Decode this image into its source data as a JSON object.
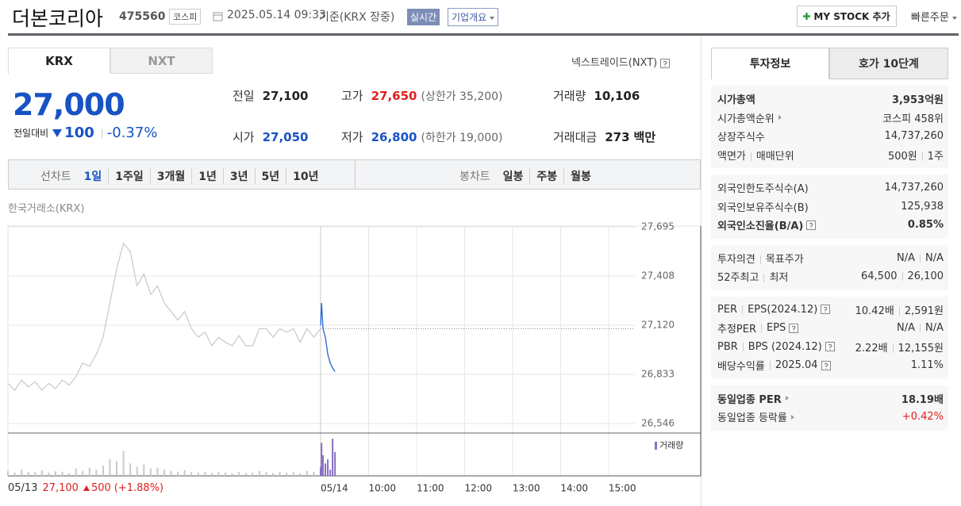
{
  "header": {
    "name": "더본코리아",
    "code": "475560",
    "market": "코스피",
    "datetime": "2025.05.14 09:33",
    "basis": "기준(KRX 장중)",
    "realtime": "실시간",
    "company_overview": "기업개요",
    "my_stock": "MY STOCK 추가",
    "quick_order": "빠른주문"
  },
  "exchange_tabs": [
    "KRX",
    "NXT"
  ],
  "nxt_link": "넥스트레이드(NXT)",
  "price": {
    "current": "27,000",
    "change_label": "전일대비",
    "change": "100",
    "change_rate": "-0.37%"
  },
  "quote": [
    [
      {
        "label": "전일",
        "value": "27,100"
      },
      {
        "label": "고가",
        "value": "27,650",
        "note": "(상한가 35,200)"
      },
      {
        "label": "거래량",
        "value": "10,106"
      }
    ],
    [
      {
        "label": "시가",
        "value": "27,050"
      },
      {
        "label": "저가",
        "value": "26,800",
        "note": "(하한가 19,000)"
      },
      {
        "label": "거래대금",
        "value": "273",
        "note": "백만"
      }
    ]
  ],
  "periods": {
    "line_label": "선차트",
    "line": [
      "1일",
      "1주일",
      "3개월",
      "1년",
      "3년",
      "5년",
      "10년"
    ],
    "candle_label": "봉차트",
    "candle": [
      "일봉",
      "주봉",
      "월봉"
    ]
  },
  "chart": {
    "source": "한국거래소(KRX)",
    "ylim": [
      26546,
      27695
    ],
    "yticks": [
      {
        "value": 27695,
        "label": "27,695"
      },
      {
        "value": 27408,
        "label": "27,408"
      },
      {
        "value": 27120,
        "label": "27,120"
      },
      {
        "value": 26833,
        "label": "26,833"
      },
      {
        "value": 26546,
        "label": "26,546"
      }
    ],
    "xlim": [
      9,
      16.92
    ],
    "day_start": {
      "value": 9,
      "label": "05/14"
    },
    "xticks": [
      {
        "value": 10,
        "label": "10:00"
      },
      {
        "value": 11,
        "label": "11:00"
      },
      {
        "value": 12,
        "label": "12:00"
      },
      {
        "value": 13,
        "label": "13:00"
      },
      {
        "value": 14,
        "label": "14:00"
      },
      {
        "value": 15,
        "label": "15:00"
      }
    ],
    "prev_close": 27100,
    "prev_day": {
      "values": [
        26780,
        26740,
        26800,
        26760,
        26790,
        26740,
        26780,
        26750,
        26800,
        26770,
        26820,
        26900,
        26880,
        26950,
        27050,
        27250,
        27450,
        27600,
        27550,
        27350,
        27420,
        27300,
        27350,
        27250,
        27200,
        27150,
        27200,
        27100,
        27050,
        27080,
        27000,
        27050,
        27020,
        27000,
        27060,
        27000,
        27000,
        27100,
        27100,
        27050,
        27100,
        27080,
        27100,
        27020,
        27100,
        27050,
        27100
      ]
    },
    "today": {
      "x": [
        9.0,
        9.02,
        9.05,
        9.1,
        9.15,
        9.2,
        9.25,
        9.3
      ],
      "values": [
        27120,
        27250,
        27100,
        27050,
        26950,
        26900,
        26870,
        26850
      ]
    },
    "volume_label": "거래량",
    "volume": {
      "ylim": [
        0,
        100
      ],
      "prev_day": [
        12,
        8,
        15,
        10,
        9,
        14,
        8,
        11,
        10,
        7,
        18,
        12,
        20,
        15,
        25,
        40,
        35,
        60,
        30,
        22,
        28,
        18,
        20,
        15,
        12,
        10,
        14,
        9,
        8,
        10,
        7,
        9,
        8,
        6,
        10,
        7,
        8,
        12,
        9,
        7,
        10,
        8,
        9,
        6,
        12,
        10,
        25
      ],
      "today": [
        20,
        80,
        50,
        30,
        40,
        15,
        90,
        58
      ]
    },
    "prev_summary": {
      "date": "05/13",
      "close": "27,100",
      "change": "500",
      "rate": "(+1.88%)"
    }
  },
  "info_tabs": [
    "투자정보",
    "호가 10단계"
  ],
  "info": [
    [
      {
        "label": [
          "시가총액"
        ],
        "value": [
          "3,953억원"
        ],
        "strong": true
      },
      {
        "label": [
          "시가총액순위"
        ],
        "arrow": true,
        "value": [
          "코스피 458위"
        ]
      },
      {
        "label": [
          "상장주식수"
        ],
        "value": [
          "14,737,260"
        ]
      },
      {
        "label": [
          "액면가",
          "매매단위"
        ],
        "value": [
          "500원",
          "1주"
        ]
      }
    ],
    [
      {
        "label": [
          "외국인한도주식수(A)"
        ],
        "value": [
          "14,737,260"
        ]
      },
      {
        "label": [
          "외국인보유주식수(B)"
        ],
        "value": [
          "125,938"
        ]
      },
      {
        "label": [
          "외국인소진율(B/A)"
        ],
        "help": true,
        "value": [
          "0.85%"
        ],
        "strong": true
      }
    ],
    [
      {
        "label": [
          "투자의견",
          "목표주가"
        ],
        "value": [
          "N/A",
          "N/A"
        ]
      },
      {
        "label": [
          "52주최고",
          "최저"
        ],
        "value": [
          "64,500",
          "26,100"
        ]
      }
    ],
    [
      {
        "label": [
          "PER",
          "EPS(2024.12)"
        ],
        "help": true,
        "value": [
          "10.42배",
          "2,591원"
        ]
      },
      {
        "label": [
          "추정PER",
          "EPS"
        ],
        "help": true,
        "value": [
          "N/A",
          "N/A"
        ]
      },
      {
        "label": [
          "PBR",
          "BPS (2024.12)"
        ],
        "help": true,
        "value": [
          "2.22배",
          "12,155원"
        ]
      },
      {
        "label": [
          "배당수익률",
          "2025.04"
        ],
        "help": true,
        "value": [
          "1.11%"
        ]
      }
    ],
    [
      {
        "label": [
          "동일업종 PER"
        ],
        "arrow": true,
        "value": [
          "18.19배"
        ],
        "strong": true
      },
      {
        "label": [
          "동일업종 등락률"
        ],
        "arrow": true,
        "value": [
          "+0.42%"
        ],
        "color": "#e0201e"
      }
    ]
  ]
}
